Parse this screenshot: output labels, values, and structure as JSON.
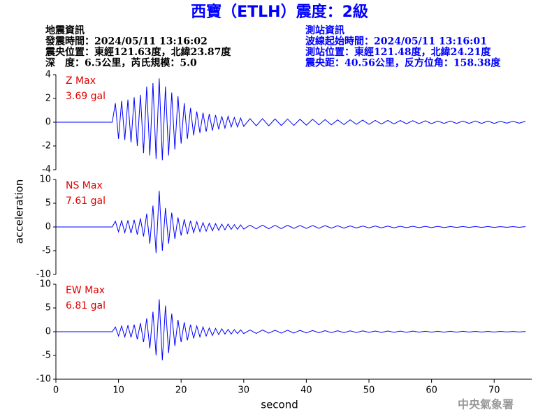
{
  "header": {
    "title": "西寶（ETLH）震度：2級",
    "left_lines": [
      "地震資訊",
      "發震時間：2024/05/11 13:16:02",
      "震央位置：東經121.63度，北緯23.87度",
      "深　度：6.5公里，芮氏規模：5.0"
    ],
    "right_lines": [
      "測站資訊",
      "波線起始時間：2024/05/11 13:16:01",
      "測站位置：東經121.48度，北緯24.21度",
      "震央距：40.56公里，反方位角：158.38度"
    ]
  },
  "axes": {
    "y_label": "acceleration",
    "x_label": "second"
  },
  "footer": "中央氣象署",
  "chart_data": [
    {
      "type": "line",
      "label": "Z Max",
      "max_label": "3.69 gal",
      "color": "#0000ff",
      "xlim": [
        0,
        76
      ],
      "ylim": [
        -4,
        4
      ],
      "yticks": [
        -4,
        -2,
        0,
        2,
        4
      ],
      "x": [
        0,
        9,
        9.5,
        10,
        10.5,
        11,
        11.5,
        12,
        12.5,
        13,
        13.5,
        14,
        14.5,
        15,
        15.5,
        16,
        16.5,
        17,
        17.5,
        18,
        18.5,
        19,
        19.5,
        20,
        20.5,
        21,
        21.5,
        22,
        22.5,
        23,
        23.5,
        24,
        24.5,
        25,
        25.5,
        26,
        26.5,
        27,
        27.5,
        28,
        28.5,
        29,
        29.5,
        30,
        31,
        32,
        33,
        34,
        35,
        36,
        37,
        38,
        39,
        40,
        41,
        42,
        43,
        44,
        45,
        46,
        47,
        48,
        49,
        50,
        51,
        52,
        53,
        54,
        55,
        56,
        57,
        58,
        59,
        60,
        61,
        62,
        63,
        64,
        65,
        66,
        67,
        68,
        69,
        70,
        71,
        72,
        73,
        74,
        75
      ],
      "values": [
        0,
        0,
        1.6,
        -1.4,
        1.8,
        -1.5,
        1.9,
        -1.7,
        2.1,
        -2.0,
        2.3,
        -2.6,
        3.0,
        -2.8,
        3.3,
        -3.1,
        3.69,
        -3.2,
        3.0,
        -2.8,
        2.5,
        -2.3,
        2.2,
        -1.8,
        1.6,
        -1.4,
        1.2,
        -1.1,
        0.9,
        -0.9,
        0.8,
        -0.8,
        0.7,
        -0.7,
        0.6,
        -0.6,
        0.5,
        -0.5,
        0.5,
        -0.4,
        0.4,
        -0.4,
        0.35,
        -0.35,
        0.3,
        -0.3,
        0.3,
        -0.3,
        0.28,
        -0.28,
        0.27,
        -0.27,
        0.25,
        -0.25,
        0.25,
        -0.22,
        0.22,
        -0.22,
        0.2,
        -0.2,
        0.2,
        -0.18,
        0.18,
        -0.18,
        0.15,
        -0.15,
        0.15,
        -0.14,
        0.14,
        -0.13,
        0.13,
        -0.12,
        0.12,
        -0.12,
        0.1,
        -0.1,
        0.1,
        -0.1,
        0.1,
        -0.1,
        0.1,
        -0.1,
        0.1,
        -0.1,
        0.08,
        -0.08,
        0.08,
        -0.08,
        0.08
      ]
    },
    {
      "type": "line",
      "label": "NS Max",
      "max_label": "7.61 gal",
      "color": "#0000ff",
      "xlim": [
        0,
        76
      ],
      "ylim": [
        -10,
        10
      ],
      "yticks": [
        -10,
        -5,
        0,
        5,
        10
      ],
      "x": [
        0,
        9,
        9.5,
        10,
        10.5,
        11,
        11.5,
        12,
        12.5,
        13,
        13.5,
        14,
        14.5,
        15,
        15.5,
        16,
        16.5,
        17,
        17.5,
        18,
        18.5,
        19,
        19.5,
        20,
        20.5,
        21,
        21.5,
        22,
        22.5,
        23,
        23.5,
        24,
        24.5,
        25,
        25.5,
        26,
        26.5,
        27,
        27.5,
        28,
        28.5,
        29,
        29.5,
        30,
        31,
        32,
        33,
        34,
        35,
        36,
        37,
        38,
        39,
        40,
        41,
        42,
        43,
        44,
        45,
        46,
        47,
        48,
        49,
        50,
        51,
        52,
        53,
        54,
        55,
        56,
        57,
        58,
        59,
        60,
        61,
        62,
        63,
        64,
        65,
        66,
        67,
        68,
        69,
        70,
        71,
        72,
        73,
        74,
        75
      ],
      "values": [
        0,
        0,
        1.2,
        -1.0,
        1.3,
        -1.2,
        1.4,
        -1.3,
        1.5,
        -1.6,
        1.8,
        -2.0,
        2.8,
        -3.5,
        4.5,
        -5.5,
        7.61,
        -5.0,
        4.0,
        -3.5,
        3.0,
        -2.5,
        2.0,
        -1.8,
        1.6,
        -1.5,
        1.3,
        -1.2,
        1.1,
        -1.0,
        0.9,
        -0.9,
        0.8,
        -0.8,
        0.7,
        -0.7,
        0.6,
        -0.6,
        0.6,
        -0.5,
        0.5,
        -0.5,
        0.45,
        -0.45,
        0.4,
        -0.4,
        0.4,
        -0.4,
        0.35,
        -0.35,
        0.35,
        -0.3,
        0.3,
        -0.3,
        0.3,
        -0.28,
        0.28,
        -0.25,
        0.25,
        -0.25,
        0.22,
        -0.22,
        0.2,
        -0.2,
        0.2,
        -0.18,
        0.18,
        -0.18,
        0.15,
        -0.15,
        0.15,
        -0.15,
        0.12,
        -0.12,
        0.12,
        -0.12,
        0.1,
        -0.1,
        0.1,
        -0.1,
        0.1,
        -0.1,
        0.1,
        -0.1,
        0.08,
        -0.08,
        0.08,
        -0.08,
        0.08
      ]
    },
    {
      "type": "line",
      "label": "EW Max",
      "max_label": "6.81 gal",
      "color": "#0000ff",
      "xlim": [
        0,
        76
      ],
      "ylim": [
        -10,
        10
      ],
      "yticks": [
        -10,
        -5,
        0,
        5,
        10
      ],
      "xticks": [
        0,
        10,
        20,
        30,
        40,
        50,
        60,
        70
      ],
      "x": [
        0,
        9,
        9.5,
        10,
        10.5,
        11,
        11.5,
        12,
        12.5,
        13,
        13.5,
        14,
        14.5,
        15,
        15.5,
        16,
        16.5,
        17,
        17.5,
        18,
        18.5,
        19,
        19.5,
        20,
        20.5,
        21,
        21.5,
        22,
        22.5,
        23,
        23.5,
        24,
        24.5,
        25,
        25.5,
        26,
        26.5,
        27,
        27.5,
        28,
        28.5,
        29,
        29.5,
        30,
        31,
        32,
        33,
        34,
        35,
        36,
        37,
        38,
        39,
        40,
        41,
        42,
        43,
        44,
        45,
        46,
        47,
        48,
        49,
        50,
        51,
        52,
        53,
        54,
        55,
        56,
        57,
        58,
        59,
        60,
        61,
        62,
        63,
        64,
        65,
        66,
        67,
        68,
        69,
        70,
        71,
        72,
        73,
        74,
        75
      ],
      "values": [
        0,
        0,
        1.0,
        -0.9,
        1.2,
        -1.1,
        1.3,
        -1.2,
        1.5,
        -1.6,
        1.8,
        -2.2,
        2.8,
        -3.5,
        4.2,
        -5.0,
        6.81,
        -6.0,
        5.5,
        -4.5,
        3.8,
        -3.0,
        2.5,
        -2.2,
        2.0,
        -1.8,
        1.5,
        -1.4,
        1.2,
        -1.1,
        1.0,
        -0.9,
        0.8,
        -0.8,
        0.7,
        -0.6,
        0.6,
        -0.5,
        0.5,
        -0.5,
        0.45,
        -0.4,
        0.4,
        -0.4,
        0.35,
        -0.35,
        0.35,
        -0.3,
        0.3,
        -0.3,
        0.3,
        -0.28,
        0.28,
        -0.25,
        0.25,
        -0.22,
        0.22,
        -0.2,
        0.2,
        -0.2,
        0.18,
        -0.18,
        0.18,
        -0.15,
        0.15,
        -0.15,
        0.15,
        -0.12,
        0.12,
        -0.12,
        0.12,
        -0.1,
        0.1,
        -0.1,
        0.1,
        -0.1,
        0.1,
        -0.1,
        0.1,
        -0.08,
        0.08,
        -0.08,
        0.08,
        -0.08,
        0.08,
        -0.06,
        0.06,
        -0.06,
        0.06
      ]
    }
  ]
}
